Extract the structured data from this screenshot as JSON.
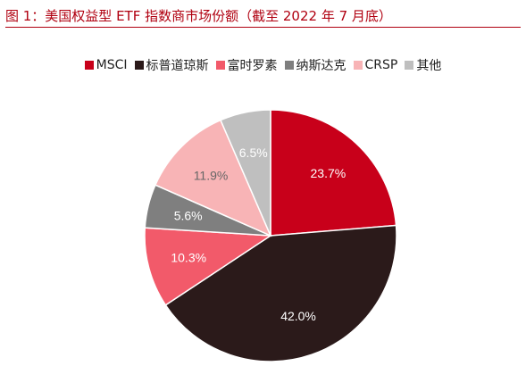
{
  "title": "图 1：美国权益型 ETF 指数商市场份额（截至 2022 年 7 月底）",
  "chart_data": {
    "type": "pie",
    "title": "图 1：美国权益型 ETF 指数商市场份额（截至 2022 年 7 月底）",
    "legend_position": "top",
    "slices": [
      {
        "label": "MSCI",
        "value": 23.7,
        "display": "23.7%",
        "color": "#c8001a",
        "text_color": "#ffffff"
      },
      {
        "label": "标普道琼斯",
        "value": 42.0,
        "display": "42.0%",
        "color": "#2b1a1a",
        "text_color": "#ffffff"
      },
      {
        "label": "富时罗素",
        "value": 10.3,
        "display": "10.3%",
        "color": "#f25a6a",
        "text_color": "#ffffff"
      },
      {
        "label": "纳斯达克",
        "value": 5.6,
        "display": "5.6%",
        "color": "#7f7f7f",
        "text_color": "#ffffff"
      },
      {
        "label": "CRSP",
        "value": 11.9,
        "display": "11.9%",
        "color": "#f8b4b6",
        "text_color": "#666666"
      },
      {
        "label": "其他",
        "value": 6.5,
        "display": "6.5%",
        "color": "#bfbfbf",
        "text_color": "#ffffff"
      }
    ]
  }
}
